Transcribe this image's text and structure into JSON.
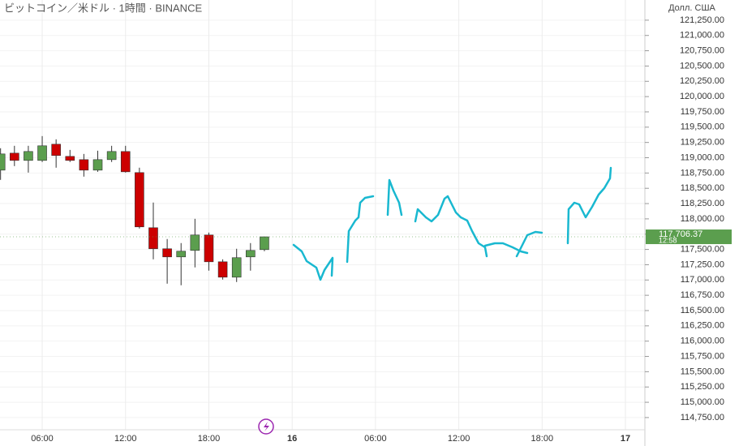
{
  "chart_data": {
    "type": "candlestick",
    "title": "ビットコイン／米ドル · 1時間 · BINANCE",
    "y_axis_label": "Долл. США",
    "x": [
      3,
      4,
      5,
      6,
      7,
      8,
      9,
      10,
      11,
      12,
      13,
      14,
      15,
      16,
      17,
      18,
      19,
      20,
      21,
      22
    ],
    "open": [
      118797,
      119075,
      118956,
      118956,
      119221,
      119022,
      118969,
      118797,
      118969,
      119102,
      118757,
      117855,
      117511,
      117378,
      117484,
      117736,
      117298,
      117046,
      117378,
      117497
    ],
    "high": [
      119155,
      119195,
      119195,
      119354,
      119301,
      119128,
      119062,
      119115,
      119195,
      119195,
      118837,
      118267,
      117670,
      117604,
      118001,
      117776,
      117338,
      117511,
      117604,
      117710
    ],
    "low": [
      118638,
      118863,
      118757,
      118930,
      118837,
      118930,
      118691,
      118770,
      118930,
      118757,
      117842,
      117338,
      116940,
      116914,
      117206,
      117153,
      117007,
      116967,
      117153,
      117471
    ],
    "close": [
      119062,
      118956,
      119102,
      119195,
      119036,
      118956,
      118797,
      118969,
      119102,
      118770,
      117869,
      117511,
      117378,
      117471,
      117736,
      117298,
      117046,
      117365,
      117484,
      117706.37
    ],
    "up_color": "#5b9e4e",
    "down_color": "#cc0000",
    "xlim": [
      2.96,
      49.4
    ],
    "xticks": [
      {
        "value": 6,
        "label": "06:00"
      },
      {
        "value": 12,
        "label": "12:00"
      },
      {
        "value": 18,
        "label": "18:00"
      },
      {
        "value": 24,
        "label": "16"
      },
      {
        "value": 30,
        "label": "06:00"
      },
      {
        "value": 36,
        "label": "12:00"
      },
      {
        "value": 42,
        "label": "18:00"
      },
      {
        "value": 48,
        "label": "17"
      }
    ],
    "ylim": [
      114550,
      121580
    ],
    "yticks": [
      {
        "value": 114750,
        "label": "114,750.00"
      },
      {
        "value": 115000,
        "label": "115,000.00"
      },
      {
        "value": 115250,
        "label": "115,250.00"
      },
      {
        "value": 115500,
        "label": "115,500.00"
      },
      {
        "value": 115750,
        "label": "115,750.00"
      },
      {
        "value": 116000,
        "label": "116,000.00"
      },
      {
        "value": 116250,
        "label": "116,250.00"
      },
      {
        "value": 116500,
        "label": "116,500.00"
      },
      {
        "value": 116750,
        "label": "116,750.00"
      },
      {
        "value": 117000,
        "label": "117,000.00"
      },
      {
        "value": 117250,
        "label": "117,250.00"
      },
      {
        "value": 117500,
        "label": "117,500.00"
      },
      {
        "value": 117750,
        "label": "117,750.00"
      },
      {
        "value": 118000,
        "label": "118,000.00"
      },
      {
        "value": 118250,
        "label": "118,250.00"
      },
      {
        "value": 118500,
        "label": "118,500.00"
      },
      {
        "value": 118750,
        "label": "118,750.00"
      },
      {
        "value": 119000,
        "label": "119,000.00"
      },
      {
        "value": 119250,
        "label": "119,250.00"
      },
      {
        "value": 119500,
        "label": "119,500.00"
      },
      {
        "value": 119750,
        "label": "119,750.00"
      },
      {
        "value": 120000,
        "label": "120,000.00"
      },
      {
        "value": 120250,
        "label": "120,250.00"
      },
      {
        "value": 120500,
        "label": "120,500.00"
      },
      {
        "value": 120750,
        "label": "120,750.00"
      },
      {
        "value": 121000,
        "label": "121,000.00"
      },
      {
        "value": 121250,
        "label": "121,250.00"
      }
    ],
    "current_price": {
      "value": 117706.37,
      "label": "117,706.37"
    },
    "countdown": "12:58",
    "grid": true
  }
}
